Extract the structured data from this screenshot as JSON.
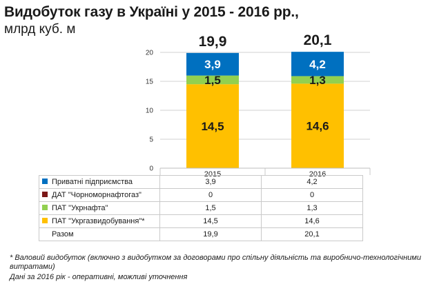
{
  "header": {
    "title": "Видобуток газу в Україні у 2015 - 2016 рр.,",
    "subtitle": "млрд куб. м"
  },
  "chart_data": {
    "type": "bar",
    "stacked": true,
    "categories": [
      "2015",
      "2016"
    ],
    "totals": [
      "19,9",
      "20,1"
    ],
    "ylim": [
      0,
      20
    ],
    "yticks": [
      "0",
      "5",
      "10",
      "15",
      "20"
    ],
    "grid": true,
    "series": [
      {
        "name": "ПАТ \"Укргазвидобування\"*",
        "values": [
          14.5,
          14.6
        ],
        "labels": [
          "14,5",
          "14,6"
        ],
        "color": "#FFC000",
        "show_bar_label": true
      },
      {
        "name": "ПАТ \"Укрнафта\"",
        "values": [
          1.5,
          1.3
        ],
        "labels": [
          "1,5",
          "1,3"
        ],
        "color": "#92D050",
        "show_bar_label": true
      },
      {
        "name": "ДАТ \"Чорноморнафтогаз\"",
        "values": [
          0,
          0
        ],
        "labels": [
          "0",
          "0"
        ],
        "color": "#7B1818",
        "show_bar_label": false
      },
      {
        "name": "Приватні підприємства",
        "values": [
          3.9,
          4.2
        ],
        "labels": [
          "3,9",
          "4,2"
        ],
        "color": "#0070C0",
        "show_bar_label": true
      }
    ]
  },
  "table": {
    "rows": [
      {
        "name": "Приватні підприємства",
        "color": "#0070C0",
        "v2015": "3,9",
        "v2016": "4,2"
      },
      {
        "name": "ДАТ \"Чорноморнафтогаз\"",
        "color": "#7B1818",
        "v2015": "0",
        "v2016": "0"
      },
      {
        "name": "ПАТ \"Укрнафта\"",
        "color": "#92D050",
        "v2015": "1,5",
        "v2016": "1,3"
      },
      {
        "name": "ПАТ \"Укргазвидобування\"*",
        "color": "#FFC000",
        "v2015": "14,5",
        "v2016": "14,6"
      },
      {
        "name": "Разом",
        "color": "",
        "v2015": "19,9",
        "v2016": "20,1"
      }
    ]
  },
  "footnote": {
    "line1": "* Валовий видобуток (включно з видобутком за договорами про спільну діяльність та виробничо-технологічними витратами)",
    "line2": "Дані за 2016 рік - оперативні, можливі уточнення"
  }
}
